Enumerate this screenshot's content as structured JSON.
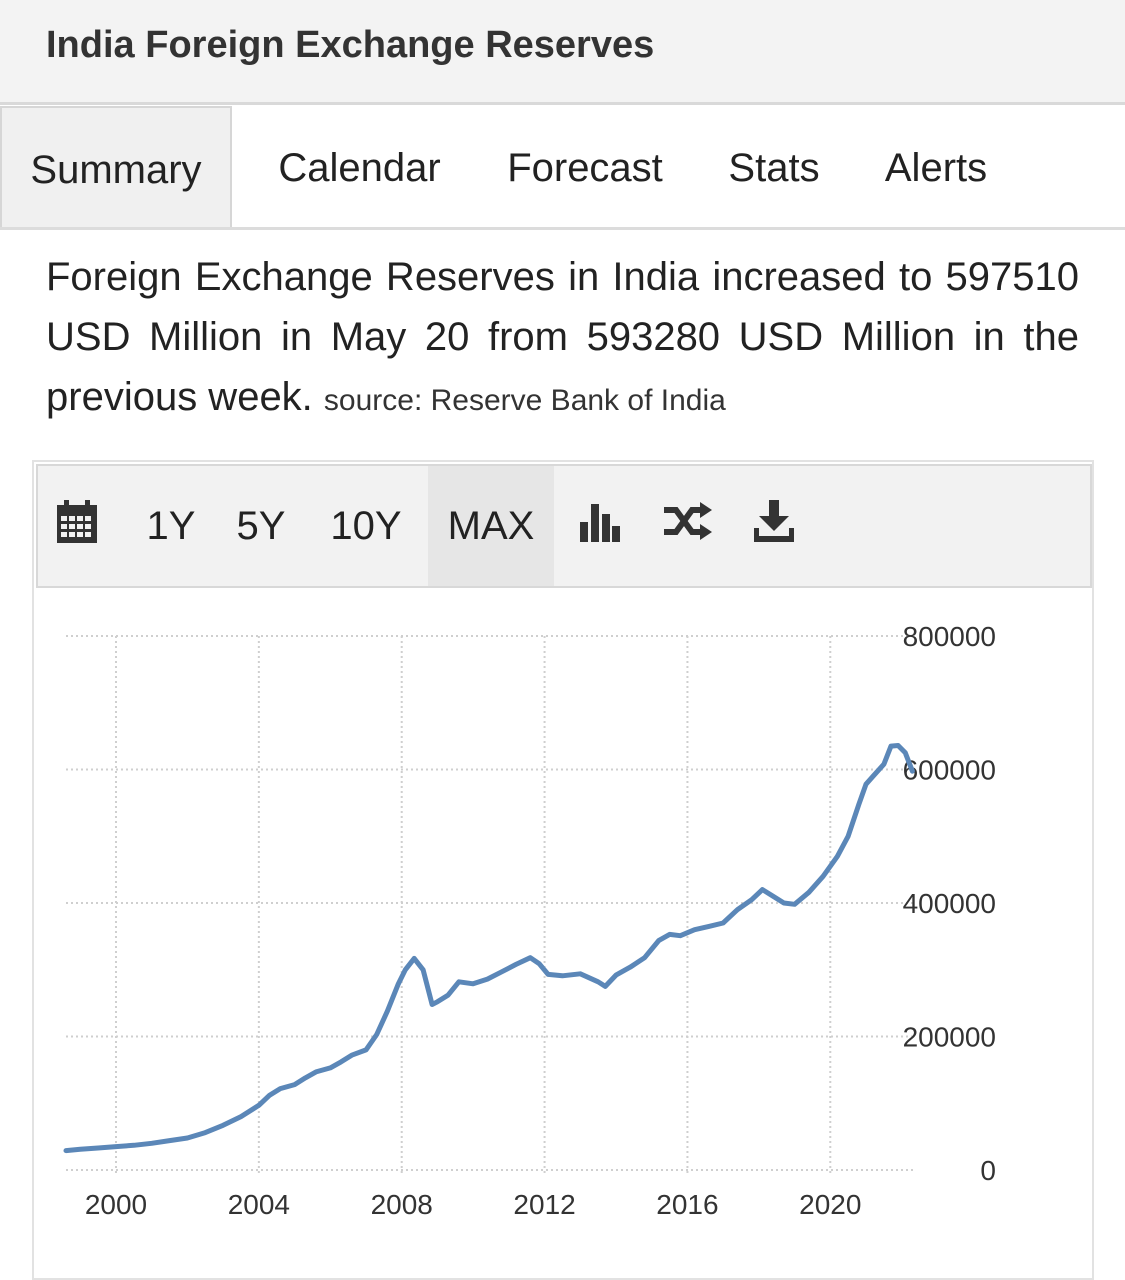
{
  "header": {
    "title": "India Foreign Exchange Reserves"
  },
  "tabs": [
    {
      "label": "Summary",
      "active": true
    },
    {
      "label": "Calendar",
      "active": false
    },
    {
      "label": "Forecast",
      "active": false
    },
    {
      "label": "Stats",
      "active": false
    },
    {
      "label": "Alerts",
      "active": false
    }
  ],
  "summary": {
    "text": "Foreign Exchange Reserves in India increased to 597510 USD Million in May 20 from 593280 USD Million in the previous week.",
    "source": "source: Reserve Bank of India"
  },
  "toolbar": {
    "calendar_icon": "calendar-icon",
    "ranges": [
      "1Y",
      "5Y",
      "10Y",
      "MAX"
    ],
    "active_range": "MAX",
    "bar_chart_icon": "bar-chart-icon",
    "shuffle_icon": "shuffle-icon",
    "download_icon": "download-icon"
  },
  "colors": {
    "line": "#5b87b8",
    "grid": "#cfcfcf",
    "active_tab_bg": "#f0f0f0"
  },
  "chart_data": {
    "type": "line",
    "title": "",
    "xlabel": "",
    "ylabel": "",
    "xlim": [
      1998.6,
      2022.4
    ],
    "ylim": [
      0,
      800000
    ],
    "x_ticks": [
      2000,
      2004,
      2008,
      2012,
      2016,
      2020
    ],
    "y_ticks": [
      0,
      200000,
      400000,
      600000,
      800000
    ],
    "y_axis_side": "right",
    "grid": true,
    "series": [
      {
        "x": [
          1998.6,
          1999.0,
          1999.5,
          2000.0,
          2000.5,
          2001.0,
          2001.5,
          2002.0,
          2002.5,
          2003.0,
          2003.5,
          2004.0,
          2004.3,
          2004.6,
          2005.0,
          2005.3,
          2005.6,
          2006.0,
          2006.3,
          2006.6,
          2007.0,
          2007.3,
          2007.6,
          2007.9,
          2008.1,
          2008.35,
          2008.6,
          2008.85,
          2009.0,
          2009.3,
          2009.6,
          2010.0,
          2010.4,
          2010.8,
          2011.2,
          2011.6,
          2011.85,
          2012.1,
          2012.5,
          2013.0,
          2013.5,
          2013.7,
          2014.0,
          2014.4,
          2014.8,
          2015.2,
          2015.5,
          2015.8,
          2016.2,
          2016.6,
          2017.0,
          2017.4,
          2017.8,
          2018.1,
          2018.4,
          2018.7,
          2019.0,
          2019.4,
          2019.8,
          2020.2,
          2020.5,
          2020.8,
          2021.0,
          2021.2,
          2021.5,
          2021.7,
          2021.9,
          2022.1,
          2022.3
        ],
        "y": [
          29000,
          31000,
          33000,
          35000,
          37000,
          40000,
          44000,
          48000,
          56000,
          67000,
          80000,
          97000,
          112000,
          122000,
          128000,
          138000,
          147000,
          153000,
          162000,
          172000,
          180000,
          203000,
          238000,
          278000,
          300000,
          317000,
          300000,
          248000,
          252000,
          262000,
          282000,
          279000,
          286000,
          297000,
          308000,
          318000,
          309000,
          293000,
          291000,
          294000,
          282000,
          275000,
          292000,
          304000,
          318000,
          344000,
          353000,
          351000,
          360000,
          365000,
          370000,
          390000,
          405000,
          420000,
          410000,
          400000,
          398000,
          416000,
          440000,
          470000,
          500000,
          548000,
          578000,
          590000,
          608000,
          635000,
          636000,
          625000,
          597510
        ]
      }
    ]
  }
}
